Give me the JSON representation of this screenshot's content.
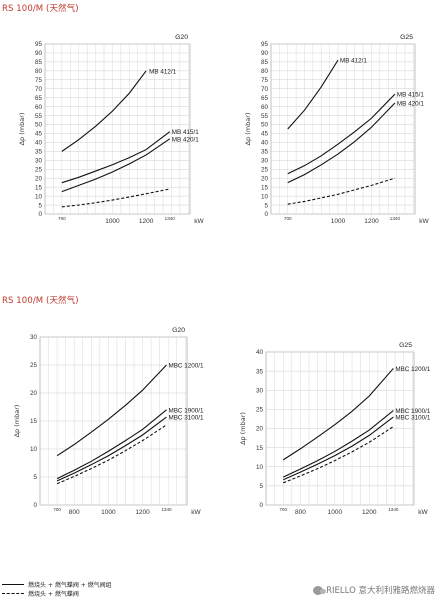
{
  "section1": {
    "title": "RS 100/M (天然气)"
  },
  "section2": {
    "title": "RS 100/M (天然气)"
  },
  "legend": {
    "solid_label": "燃烧头 + 燃气蝶阀 + 燃气阀组",
    "dashed_label": "燃烧头 + 燃气蝶阀"
  },
  "watermark": {
    "text": "RIELLO 意大利利雅路燃烧器"
  },
  "chart_data": [
    {
      "type": "line",
      "title": "G20",
      "ylabel": "Δp (mbar)",
      "xlabel": "kW",
      "xlim": [
        600,
        1460
      ],
      "ylim": [
        0,
        95
      ],
      "yticks": [
        0,
        5,
        10,
        15,
        20,
        25,
        30,
        35,
        40,
        45,
        50,
        55,
        60,
        65,
        70,
        75,
        80,
        85,
        90,
        95
      ],
      "xticks": [
        1000,
        1200
      ],
      "x_marks": [
        700,
        1340
      ],
      "grid": true,
      "series": [
        {
          "name": "MB 412/1",
          "style": "solid",
          "x": [
            700,
            800,
            900,
            1000,
            1100,
            1200
          ],
          "y": [
            35,
            41.5,
            49,
            57.5,
            67.5,
            80
          ]
        },
        {
          "name": "MB 415/1",
          "style": "solid",
          "x": [
            700,
            800,
            900,
            1000,
            1100,
            1200,
            1340
          ],
          "y": [
            17.5,
            20.5,
            24,
            27.5,
            31.5,
            36,
            46
          ]
        },
        {
          "name": "MB 420/1",
          "style": "solid",
          "x": [
            700,
            800,
            900,
            1000,
            1100,
            1200,
            1340
          ],
          "y": [
            12.5,
            16,
            19.5,
            23.5,
            28,
            33,
            42
          ]
        },
        {
          "name": "",
          "style": "dashed",
          "x": [
            700,
            800,
            900,
            1000,
            1100,
            1200,
            1340
          ],
          "y": [
            4,
            5,
            6.3,
            7.8,
            9.5,
            11.3,
            14
          ]
        }
      ]
    },
    {
      "type": "line",
      "title": "G25",
      "ylabel": "Δp (mbar)",
      "xlabel": "kW",
      "xlim": [
        600,
        1460
      ],
      "ylim": [
        0,
        95
      ],
      "yticks": [
        0,
        5,
        10,
        15,
        20,
        25,
        30,
        35,
        40,
        45,
        50,
        55,
        60,
        65,
        70,
        75,
        80,
        85,
        90,
        95
      ],
      "xticks": [
        1000,
        1200
      ],
      "x_marks": [
        700,
        1340
      ],
      "grid": true,
      "series": [
        {
          "name": "MB 412/1",
          "style": "solid",
          "x": [
            700,
            800,
            900,
            1000
          ],
          "y": [
            47.5,
            58,
            71,
            86
          ]
        },
        {
          "name": "MB 415/1",
          "style": "solid",
          "x": [
            700,
            800,
            900,
            1000,
            1100,
            1200,
            1340
          ],
          "y": [
            22.5,
            27,
            32.5,
            39,
            46,
            53.5,
            67
          ]
        },
        {
          "name": "MB 420/1",
          "style": "solid",
          "x": [
            700,
            800,
            900,
            1000,
            1100,
            1200,
            1340
          ],
          "y": [
            17.5,
            22,
            27.5,
            33.5,
            40.5,
            48.5,
            62
          ]
        },
        {
          "name": "",
          "style": "dashed",
          "x": [
            700,
            800,
            900,
            1000,
            1100,
            1200,
            1340
          ],
          "y": [
            5.5,
            7,
            9,
            11,
            13.5,
            16,
            20
          ]
        }
      ]
    },
    {
      "type": "line",
      "title": "G20",
      "ylabel": "Δp (mbar)",
      "xlabel": "kW",
      "xlim": [
        600,
        1460
      ],
      "ylim": [
        0,
        30
      ],
      "yticks": [
        0,
        5,
        10,
        15,
        20,
        25,
        30
      ],
      "xticks": [
        800,
        1000,
        1200
      ],
      "x_marks": [
        700,
        1340
      ],
      "grid": true,
      "series": [
        {
          "name": "MBC 1200/1",
          "style": "solid",
          "x": [
            700,
            800,
            900,
            1000,
            1100,
            1200,
            1340
          ],
          "y": [
            8.8,
            10.8,
            13,
            15.3,
            17.8,
            20.5,
            25
          ]
        },
        {
          "name": "MBC 1900/1",
          "style": "solid",
          "x": [
            700,
            800,
            900,
            1000,
            1100,
            1200,
            1340
          ],
          "y": [
            4.7,
            6.2,
            7.8,
            9.6,
            11.5,
            13.5,
            17
          ]
        },
        {
          "name": "MBC 3100/1",
          "style": "solid",
          "x": [
            700,
            800,
            900,
            1000,
            1100,
            1200,
            1340
          ],
          "y": [
            4.3,
            5.7,
            7.2,
            8.8,
            10.6,
            12.5,
            15.7
          ]
        },
        {
          "name": "",
          "style": "dashed",
          "x": [
            700,
            800,
            900,
            1000,
            1100,
            1200,
            1340
          ],
          "y": [
            3.8,
            5.1,
            6.5,
            8.0,
            9.7,
            11.5,
            14.3
          ]
        }
      ]
    },
    {
      "type": "line",
      "title": "G25",
      "ylabel": "Δp (mbar)",
      "xlabel": "kW",
      "xlim": [
        600,
        1460
      ],
      "ylim": [
        0,
        40
      ],
      "yticks": [
        0,
        5,
        10,
        15,
        20,
        25,
        30,
        35,
        40
      ],
      "xticks": [
        800,
        1000,
        1200
      ],
      "x_marks": [
        700,
        1340
      ],
      "grid": true,
      "series": [
        {
          "name": "MBC 1200/1",
          "style": "solid",
          "x": [
            700,
            800,
            900,
            1000,
            1100,
            1200,
            1340
          ],
          "y": [
            11.8,
            14.7,
            17.8,
            21,
            24.5,
            28.5,
            35.7
          ]
        },
        {
          "name": "MBC 1900/1",
          "style": "solid",
          "x": [
            700,
            800,
            900,
            1000,
            1100,
            1200,
            1340
          ],
          "y": [
            7.3,
            9.4,
            11.6,
            14,
            16.7,
            19.6,
            24.7
          ]
        },
        {
          "name": "MBC 3100/1",
          "style": "solid",
          "x": [
            700,
            800,
            900,
            1000,
            1100,
            1200,
            1340
          ],
          "y": [
            6.6,
            8.6,
            10.7,
            12.9,
            15.4,
            18.2,
            23
          ]
        },
        {
          "name": "",
          "style": "dashed",
          "x": [
            700,
            800,
            900,
            1000,
            1100,
            1200,
            1340
          ],
          "y": [
            5.8,
            7.6,
            9.5,
            11.6,
            13.9,
            16.4,
            20.5
          ]
        }
      ]
    }
  ]
}
